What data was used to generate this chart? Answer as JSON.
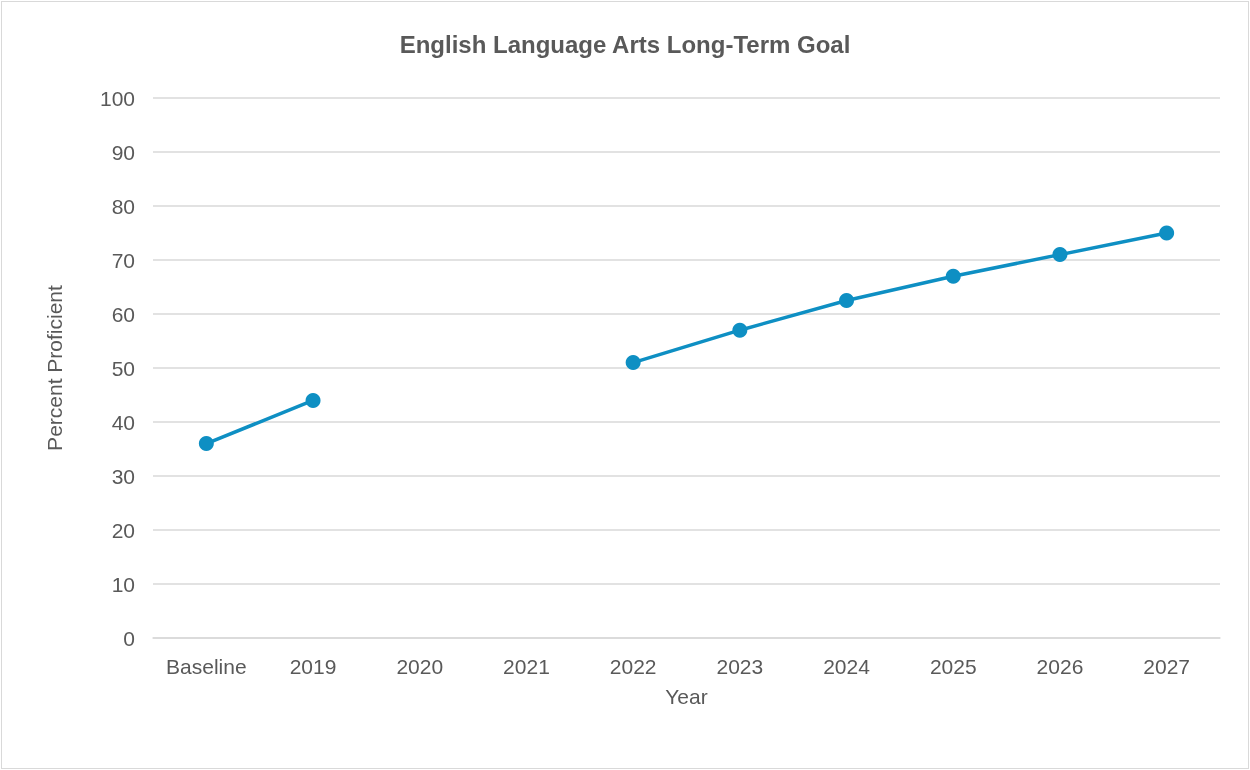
{
  "chart_data": {
    "type": "line",
    "title": "English Language Arts Long-Term Goal",
    "xlabel": "Year",
    "ylabel": "Percent Proficient",
    "categories": [
      "Baseline",
      "2019",
      "2020",
      "2021",
      "2022",
      "2023",
      "2024",
      "2025",
      "2026",
      "2027"
    ],
    "series": [
      {
        "color": "#0e8fc3",
        "values": [
          36,
          44,
          null,
          null,
          51,
          57,
          62.5,
          67,
          71,
          75
        ]
      }
    ],
    "ylim": [
      0,
      100
    ],
    "yticks": [
      0,
      10,
      20,
      30,
      40,
      50,
      60,
      70,
      80,
      90,
      100
    ],
    "grid": "y",
    "marker": "circle",
    "line_style": "solid"
  }
}
